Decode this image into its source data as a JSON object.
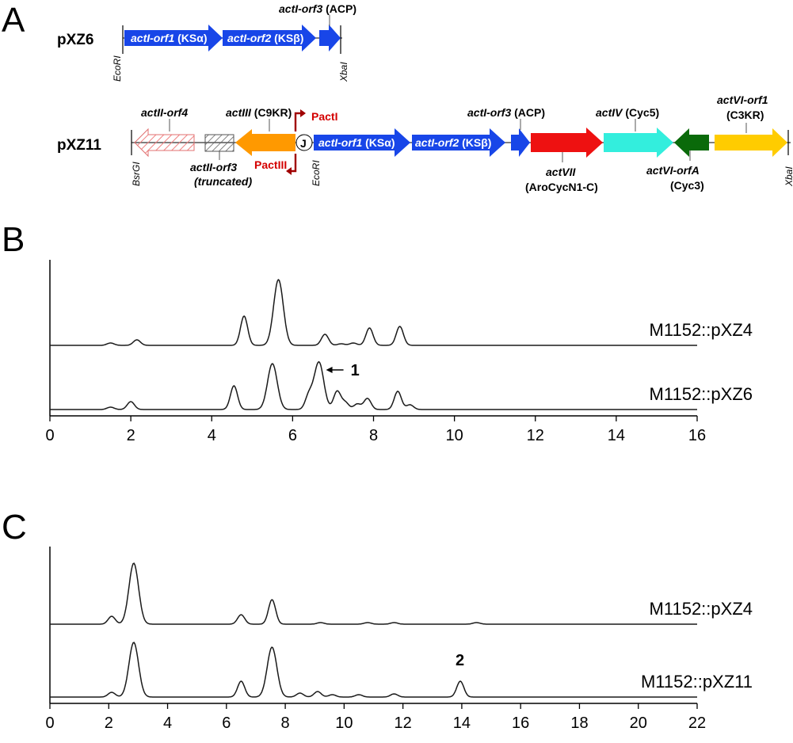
{
  "panels": {
    "a": "A",
    "b": "B",
    "c": "C"
  },
  "constructs": {
    "pxz6": {
      "name": "pXZ6",
      "genes": [
        {
          "name": "actI-orf1",
          "suffix": " (KSα)",
          "color": "#1846e8"
        },
        {
          "name": "actI-orf2",
          "suffix": " (KSβ)",
          "color": "#1846e8"
        },
        {
          "name": "actI-orf3",
          "suffix": " (ACP)",
          "color": "#1846e8"
        }
      ],
      "sites": {
        "left": "EcoRI",
        "right": "XbaI"
      }
    },
    "pxz11": {
      "name": "pXZ11",
      "genes": [
        {
          "name": "actII-orf4",
          "suffix": "",
          "color": "#f08080"
        },
        {
          "name": "actII-orf3",
          "suffix": "",
          "note": "(truncated)",
          "color": "#808080"
        },
        {
          "name": "actIII",
          "suffix": " (C9KR)",
          "color": "#ff9900"
        },
        {
          "name": "actI-orf1",
          "suffix": " (KSα)",
          "color": "#1846e8"
        },
        {
          "name": "actI-orf2",
          "suffix": " (KSβ)",
          "color": "#1846e8"
        },
        {
          "name": "actI-orf3",
          "suffix": " (ACP)",
          "color": "#1846e8"
        },
        {
          "name": "actVII",
          "suffix": "",
          "note": "(AroCycN1-C)",
          "color": "#ee1111"
        },
        {
          "name": "actIV",
          "suffix": " (Cyc5)",
          "color": "#33eedd"
        },
        {
          "name": "actVI-orfA",
          "suffix": "",
          "note": "(Cyc3)",
          "color": "#0a6a0a"
        },
        {
          "name": "actVI-orf1",
          "suffix": "",
          "note": "(C3KR)",
          "color": "#ffcc00"
        }
      ],
      "sites": {
        "left": "BsrGI",
        "mid": "EcoRI",
        "right": "XbaI"
      },
      "junction": "J",
      "promoters": {
        "p1": "PactI",
        "p2": "PactIII"
      }
    }
  },
  "chart_data": [
    {
      "type": "line",
      "panel": "B",
      "xlim": [
        0,
        16
      ],
      "xticks": [
        0,
        2,
        4,
        6,
        8,
        10,
        12,
        14,
        16
      ],
      "series": [
        {
          "name": "M1152::pXZ4",
          "peaks": [
            [
              1.5,
              3
            ],
            [
              2.15,
              7
            ],
            [
              4.8,
              37
            ],
            [
              5.65,
              83
            ],
            [
              6.8,
              14
            ],
            [
              7.2,
              2
            ],
            [
              7.5,
              3
            ],
            [
              7.9,
              22
            ],
            [
              8.65,
              24
            ]
          ]
        },
        {
          "name": "M1152::pXZ6",
          "peaks": [
            [
              1.5,
              3
            ],
            [
              2.0,
              10
            ],
            [
              4.55,
              30
            ],
            [
              5.5,
              58
            ],
            [
              6.4,
              17
            ],
            [
              6.65,
              60
            ],
            [
              7.1,
              23
            ],
            [
              7.3,
              9
            ],
            [
              7.6,
              7
            ],
            [
              7.85,
              14
            ],
            [
              8.6,
              23
            ],
            [
              8.9,
              6
            ]
          ]
        }
      ],
      "annotations": [
        {
          "label": "1",
          "x": 6.65
        }
      ]
    },
    {
      "type": "line",
      "panel": "C",
      "xlim": [
        0,
        22
      ],
      "xticks": [
        0,
        2,
        4,
        6,
        8,
        10,
        12,
        14,
        16,
        18,
        20,
        22
      ],
      "series": [
        {
          "name": "M1152::pXZ4",
          "peaks": [
            [
              2.1,
              10
            ],
            [
              2.85,
              77
            ],
            [
              6.5,
              12
            ],
            [
              7.55,
              31
            ],
            [
              9.2,
              2
            ],
            [
              10.8,
              2
            ],
            [
              11.7,
              2
            ],
            [
              14.5,
              2
            ]
          ]
        },
        {
          "name": "M1152::pXZ11",
          "peaks": [
            [
              2.1,
              6
            ],
            [
              2.85,
              69
            ],
            [
              6.5,
              20
            ],
            [
              7.55,
              63
            ],
            [
              8.5,
              5
            ],
            [
              9.1,
              7
            ],
            [
              9.6,
              3
            ],
            [
              10.5,
              3
            ],
            [
              11.7,
              4
            ],
            [
              13.95,
              20
            ]
          ]
        }
      ],
      "annotations": [
        {
          "label": "2",
          "x": 13.95
        }
      ]
    }
  ]
}
